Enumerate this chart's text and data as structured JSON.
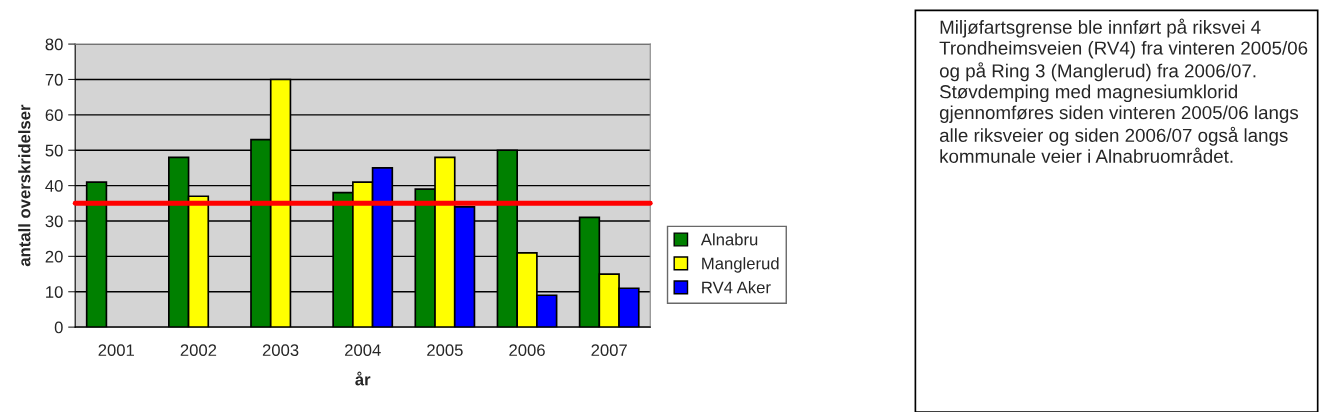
{
  "chart_data": {
    "type": "bar",
    "xlabel": "år",
    "ylabel": "antall overskridelser",
    "categories": [
      "2001",
      "2002",
      "2003",
      "2004",
      "2005",
      "2006",
      "2007"
    ],
    "series": [
      {
        "name": "Alnabru",
        "color": "#008000",
        "values": [
          41,
          48,
          53,
          38,
          39,
          50,
          31
        ]
      },
      {
        "name": "Manglerud",
        "color": "#ffff00",
        "values": [
          null,
          37,
          70,
          41,
          48,
          21,
          15
        ]
      },
      {
        "name": "RV4 Aker",
        "color": "#0000ff",
        "values": [
          null,
          null,
          null,
          45,
          34,
          9,
          11
        ]
      }
    ],
    "ylim": [
      0,
      80
    ],
    "yticks": [
      0,
      10,
      20,
      30,
      40,
      50,
      60,
      70,
      80
    ],
    "grid": "y",
    "legend": "right",
    "ref_lines": [
      {
        "axis": "y",
        "value": 35,
        "color": "#ff0000"
      }
    ],
    "annotations": [
      "Miljøfartsgrense ble innført på riksvei 4 Trondheimsveien (RV4) fra vinteren 2005/06 og på Ring 3 (Manglerud) fra 2006/07.\nStøvdemping med magnesiumklorid gjennomføres siden vinteren 2005/06 langs alle riksveier og siden 2006/07 også langs kommunale veier i Alnabruområdet."
    ]
  }
}
